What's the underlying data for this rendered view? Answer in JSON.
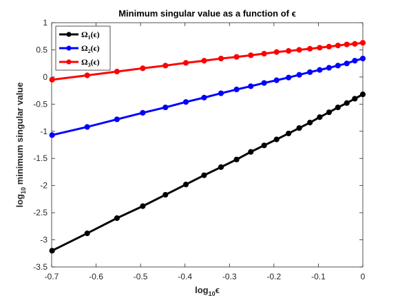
{
  "chart_data": {
    "type": "line",
    "title": "Minimum singular value as a function of ϵ",
    "xlabel": {
      "main": "log",
      "sub": "10",
      "tail": "ϵ"
    },
    "ylabel": {
      "main": "log",
      "sub": "10",
      "tail": " minimum singular value"
    },
    "xlim": [
      -0.7,
      0
    ],
    "ylim": [
      -3.5,
      1
    ],
    "xticks": [
      -0.7,
      -0.6,
      -0.5,
      -0.4,
      -0.3,
      -0.2,
      -0.1,
      0
    ],
    "xtick_labels": [
      "-0.7",
      "-0.6",
      "-0.5",
      "-0.4",
      "-0.3",
      "-0.2",
      "-0.1",
      "0"
    ],
    "yticks": [
      -3.5,
      -3,
      -2.5,
      -2,
      -1.5,
      -1,
      -0.5,
      0,
      0.5,
      1
    ],
    "ytick_labels": [
      "-3.5",
      "-3",
      "-2.5",
      "-2",
      "-1.5",
      "-1",
      "-0.5",
      "0",
      "0.5",
      "1"
    ],
    "grid": false,
    "legend_position": "top-left",
    "x": [
      -0.699,
      -0.62,
      -0.553,
      -0.495,
      -0.444,
      -0.398,
      -0.357,
      -0.319,
      -0.284,
      -0.252,
      -0.222,
      -0.194,
      -0.167,
      -0.143,
      -0.119,
      -0.097,
      -0.076,
      -0.056,
      -0.036,
      -0.018,
      0
    ],
    "series": [
      {
        "name": {
          "main": "Ω",
          "sub": "1",
          "tail": "(ϵ)"
        },
        "color": "#000000",
        "values": [
          -3.2,
          -2.88,
          -2.6,
          -2.38,
          -2.17,
          -1.98,
          -1.81,
          -1.66,
          -1.52,
          -1.38,
          -1.26,
          -1.15,
          -1.04,
          -0.94,
          -0.84,
          -0.74,
          -0.65,
          -0.56,
          -0.48,
          -0.4,
          -0.32
        ]
      },
      {
        "name": {
          "main": "Ω",
          "sub": "2",
          "tail": "(ϵ)"
        },
        "color": "#0000ff",
        "values": [
          -1.07,
          -0.92,
          -0.78,
          -0.66,
          -0.56,
          -0.46,
          -0.38,
          -0.3,
          -0.23,
          -0.17,
          -0.11,
          -0.06,
          -0.01,
          0.04,
          0.09,
          0.13,
          0.17,
          0.21,
          0.25,
          0.3,
          0.34
        ]
      },
      {
        "name": {
          "main": "Ω",
          "sub": "3",
          "tail": "(ϵ)"
        },
        "color": "#ff0000",
        "values": [
          -0.05,
          0.03,
          0.1,
          0.16,
          0.21,
          0.26,
          0.3,
          0.34,
          0.37,
          0.4,
          0.43,
          0.46,
          0.48,
          0.5,
          0.52,
          0.54,
          0.56,
          0.58,
          0.6,
          0.61,
          0.63
        ]
      }
    ]
  }
}
